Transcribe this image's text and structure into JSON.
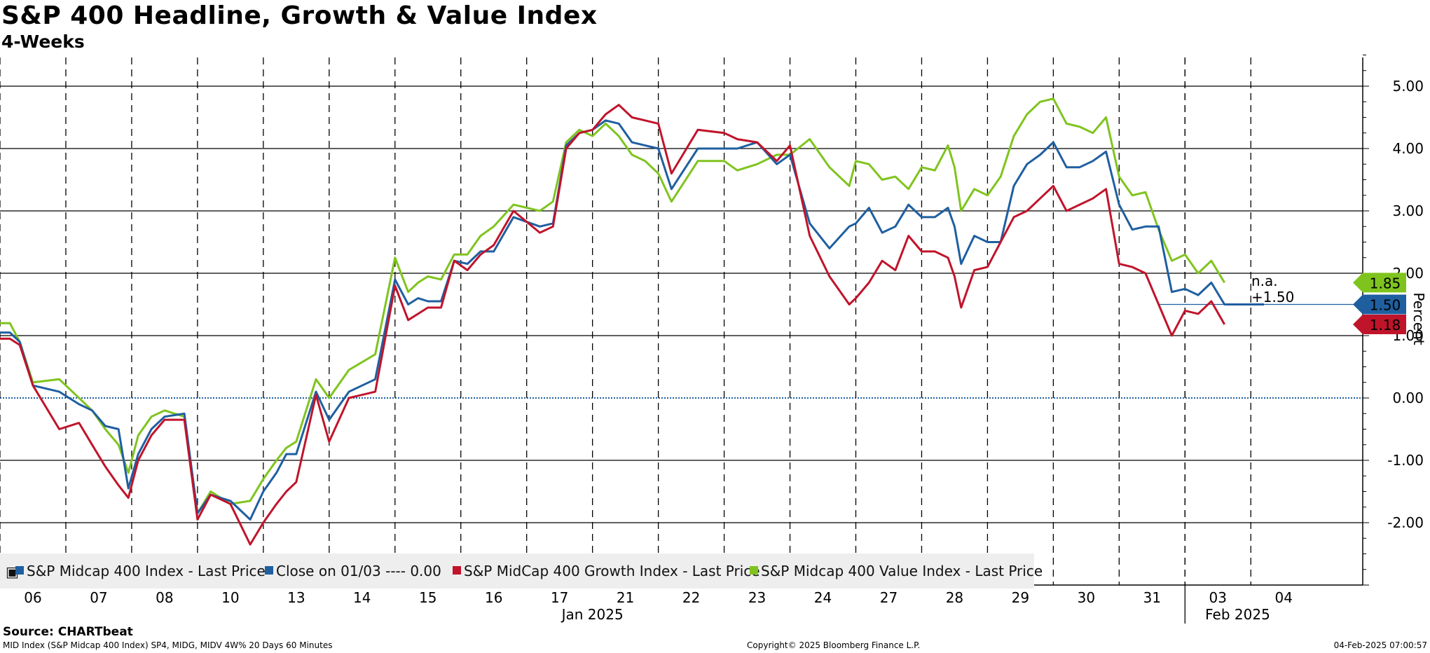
{
  "header": {
    "title": "S&P 400 Headline, Growth & Value Index",
    "subtitle": "4-Weeks"
  },
  "footer": {
    "source": "Source: CHARTbeat",
    "description": "MID Index (S&P Midcap 400 Index) SP4, MIDG, MIDV 4W% 20 Days 60 Minutes",
    "copyright": "Copyright© 2025 Bloomberg Finance L.P.",
    "timestamp": "04-Feb-2025 07:00:57"
  },
  "colors": {
    "headline": "#1f5fa0",
    "close": "#1f5fa0",
    "growth": "#c0142b",
    "value": "#7fc41e",
    "grid": "#000000",
    "zero_line": "#1f5fa0"
  },
  "chart_data": {
    "type": "line",
    "title": "S&P 400 Headline, Growth & Value Index",
    "subtitle": "4-Weeks",
    "ylabel": "Percent",
    "ylim": [
      -3.0,
      5.5
    ],
    "yticks": [
      -2.0,
      -1.0,
      0.0,
      1.0,
      2.0,
      3.0,
      4.0,
      5.0
    ],
    "ytick_labels": [
      "-2.00",
      "-1.00",
      "0.00",
      "1.00",
      "2.00",
      "3.00",
      "4.00",
      "5.00"
    ],
    "x_range": [
      0,
      20.7
    ],
    "day_labels": [
      "06",
      "07",
      "08",
      "10",
      "13",
      "14",
      "15",
      "16",
      "17",
      "21",
      "22",
      "23",
      "24",
      "27",
      "28",
      "29",
      "30",
      "31",
      "03",
      "04"
    ],
    "month_labels": [
      {
        "label": "Jan 2025",
        "x": 9.0
      },
      {
        "label": "Feb 2025",
        "x": 18.8
      }
    ],
    "month_separator_x": 18.0,
    "legend_location": "bottom-left",
    "legend": [
      {
        "label": "S&P Midcap 400 Index - Last Price",
        "series": "headline"
      },
      {
        "label": "Close on 01/03 ---- 0.00",
        "series": "close"
      },
      {
        "label": "S&P MidCap 400 Growth Index - Last Price",
        "series": "growth"
      },
      {
        "label": "S&P Midcap 400 Value Index - Last Price",
        "series": "value"
      }
    ],
    "last_values": [
      {
        "series": "value",
        "label": "1.85"
      },
      {
        "series": "headline",
        "label": "1.50"
      },
      {
        "series": "growth",
        "label": "1.18"
      }
    ],
    "annotation": {
      "line1": "n.a.",
      "line2": "+1.50"
    },
    "reference_line": {
      "name": "Close on 01/03",
      "value": 0.0
    },
    "current_level_line": {
      "value": 1.5
    },
    "series": [
      {
        "key": "headline",
        "name": "S&P Midcap 400 Index - Last Price",
        "x": [
          0,
          0.15,
          0.3,
          0.5,
          0.9,
          1.2,
          1.4,
          1.6,
          1.8,
          1.95,
          2.1,
          2.3,
          2.5,
          2.8,
          3.0,
          3.2,
          3.5,
          3.8,
          4.0,
          4.2,
          4.35,
          4.5,
          4.8,
          5.0,
          5.3,
          5.7,
          6.0,
          6.2,
          6.35,
          6.5,
          6.7,
          6.9,
          7.1,
          7.3,
          7.5,
          7.8,
          8.2,
          8.4,
          8.6,
          8.8,
          9.0,
          9.2,
          9.4,
          9.6,
          9.8,
          10.0,
          10.2,
          10.6,
          11.0,
          11.2,
          11.5,
          11.8,
          12.0,
          12.3,
          12.6,
          12.9,
          13.0,
          13.2,
          13.4,
          13.6,
          13.8,
          14.0,
          14.2,
          14.4,
          14.5,
          14.6,
          14.8,
          15.0,
          15.2,
          15.4,
          15.6,
          15.8,
          16.0,
          16.2,
          16.4,
          16.6,
          16.8,
          17.0,
          17.2,
          17.4,
          17.6,
          17.8,
          18.0,
          18.2,
          18.4,
          18.6,
          18.8,
          19.0,
          19.2
        ],
        "values": [
          1.05,
          1.05,
          0.9,
          0.2,
          0.1,
          -0.1,
          -0.2,
          -0.45,
          -0.5,
          -1.45,
          -0.9,
          -0.5,
          -0.3,
          -0.25,
          -1.85,
          -1.55,
          -1.65,
          -1.95,
          -1.5,
          -1.2,
          -0.9,
          -0.9,
          0.1,
          -0.35,
          0.1,
          0.3,
          1.9,
          1.5,
          1.6,
          1.55,
          1.55,
          2.2,
          2.15,
          2.35,
          2.35,
          2.9,
          2.75,
          2.8,
          4.05,
          4.25,
          4.3,
          4.45,
          4.4,
          4.1,
          4.05,
          4.0,
          3.35,
          4.0,
          4.0,
          4.0,
          4.1,
          3.75,
          3.9,
          2.8,
          2.4,
          2.75,
          2.8,
          3.05,
          2.65,
          2.75,
          3.1,
          2.9,
          2.9,
          3.05,
          2.75,
          2.15,
          2.6,
          2.5,
          2.5,
          3.4,
          3.75,
          3.9,
          4.1,
          3.7,
          3.7,
          3.8,
          3.95,
          3.1,
          2.7,
          2.75,
          2.75,
          1.7,
          1.75,
          1.65,
          1.85,
          1.5,
          1.5,
          1.5,
          1.5
        ]
      },
      {
        "key": "growth",
        "name": "S&P MidCap 400 Growth Index - Last Price",
        "x": [
          0,
          0.15,
          0.3,
          0.5,
          0.9,
          1.2,
          1.4,
          1.6,
          1.8,
          1.95,
          2.1,
          2.3,
          2.5,
          2.8,
          3.0,
          3.2,
          3.5,
          3.8,
          4.0,
          4.2,
          4.35,
          4.5,
          4.8,
          5.0,
          5.3,
          5.7,
          6.0,
          6.2,
          6.35,
          6.5,
          6.7,
          6.9,
          7.1,
          7.3,
          7.5,
          7.8,
          8.2,
          8.4,
          8.6,
          8.8,
          9.0,
          9.2,
          9.4,
          9.6,
          9.8,
          10.0,
          10.2,
          10.6,
          11.0,
          11.2,
          11.5,
          11.8,
          12.0,
          12.3,
          12.6,
          12.9,
          13.0,
          13.2,
          13.4,
          13.6,
          13.8,
          14.0,
          14.2,
          14.4,
          14.5,
          14.6,
          14.8,
          15.0,
          15.2,
          15.4,
          15.6,
          15.8,
          16.0,
          16.2,
          16.4,
          16.6,
          16.8,
          17.0,
          17.2,
          17.4,
          17.6,
          17.8,
          18.0,
          18.2,
          18.4,
          18.6
        ],
        "values": [
          0.95,
          0.95,
          0.85,
          0.2,
          -0.5,
          -0.4,
          -0.75,
          -1.1,
          -1.4,
          -1.6,
          -1.0,
          -0.6,
          -0.35,
          -0.35,
          -1.95,
          -1.55,
          -1.7,
          -2.35,
          -2.0,
          -1.7,
          -1.5,
          -1.35,
          0.05,
          -0.7,
          0.0,
          0.1,
          1.8,
          1.25,
          1.35,
          1.45,
          1.45,
          2.2,
          2.05,
          2.3,
          2.45,
          3.0,
          2.65,
          2.75,
          4.0,
          4.25,
          4.3,
          4.55,
          4.7,
          4.5,
          4.45,
          4.4,
          3.6,
          4.3,
          4.25,
          4.15,
          4.1,
          3.8,
          4.05,
          2.6,
          1.95,
          1.5,
          1.6,
          1.85,
          2.2,
          2.05,
          2.6,
          2.35,
          2.35,
          2.25,
          1.95,
          1.45,
          2.05,
          2.1,
          2.5,
          2.9,
          3.0,
          3.2,
          3.4,
          3.0,
          3.1,
          3.2,
          3.35,
          2.15,
          2.1,
          2.0,
          1.5,
          1.0,
          1.4,
          1.35,
          1.55,
          1.18
        ]
      },
      {
        "key": "value",
        "name": "S&P Midcap 400 Value Index - Last Price",
        "x": [
          0,
          0.15,
          0.3,
          0.5,
          0.9,
          1.2,
          1.4,
          1.6,
          1.8,
          1.95,
          2.1,
          2.3,
          2.5,
          2.8,
          3.0,
          3.2,
          3.5,
          3.8,
          4.0,
          4.2,
          4.35,
          4.5,
          4.8,
          5.0,
          5.3,
          5.7,
          6.0,
          6.2,
          6.35,
          6.5,
          6.7,
          6.9,
          7.1,
          7.3,
          7.5,
          7.8,
          8.2,
          8.4,
          8.6,
          8.8,
          9.0,
          9.2,
          9.4,
          9.6,
          9.8,
          10.0,
          10.2,
          10.6,
          11.0,
          11.2,
          11.5,
          11.8,
          12.0,
          12.3,
          12.6,
          12.9,
          13.0,
          13.2,
          13.4,
          13.6,
          13.8,
          14.0,
          14.2,
          14.4,
          14.5,
          14.6,
          14.8,
          15.0,
          15.2,
          15.4,
          15.6,
          15.8,
          16.0,
          16.2,
          16.4,
          16.6,
          16.8,
          17.0,
          17.2,
          17.4,
          17.6,
          17.8,
          18.0,
          18.2,
          18.4,
          18.6
        ],
        "values": [
          1.2,
          1.2,
          0.9,
          0.25,
          0.3,
          0.0,
          -0.2,
          -0.5,
          -0.75,
          -1.2,
          -0.6,
          -0.3,
          -0.2,
          -0.3,
          -1.85,
          -1.5,
          -1.7,
          -1.65,
          -1.3,
          -1.0,
          -0.8,
          -0.7,
          0.3,
          0.0,
          0.45,
          0.7,
          2.25,
          1.7,
          1.85,
          1.95,
          1.9,
          2.3,
          2.3,
          2.6,
          2.75,
          3.1,
          3.0,
          3.15,
          4.1,
          4.3,
          4.2,
          4.4,
          4.2,
          3.9,
          3.8,
          3.6,
          3.15,
          3.8,
          3.8,
          3.65,
          3.75,
          3.9,
          3.9,
          4.15,
          3.7,
          3.4,
          3.8,
          3.75,
          3.5,
          3.55,
          3.35,
          3.7,
          3.65,
          4.05,
          3.7,
          3.0,
          3.35,
          3.25,
          3.55,
          4.2,
          4.55,
          4.75,
          4.8,
          4.4,
          4.35,
          4.25,
          4.5,
          3.55,
          3.25,
          3.3,
          2.7,
          2.2,
          2.3,
          2.0,
          2.2,
          1.85
        ]
      }
    ]
  }
}
